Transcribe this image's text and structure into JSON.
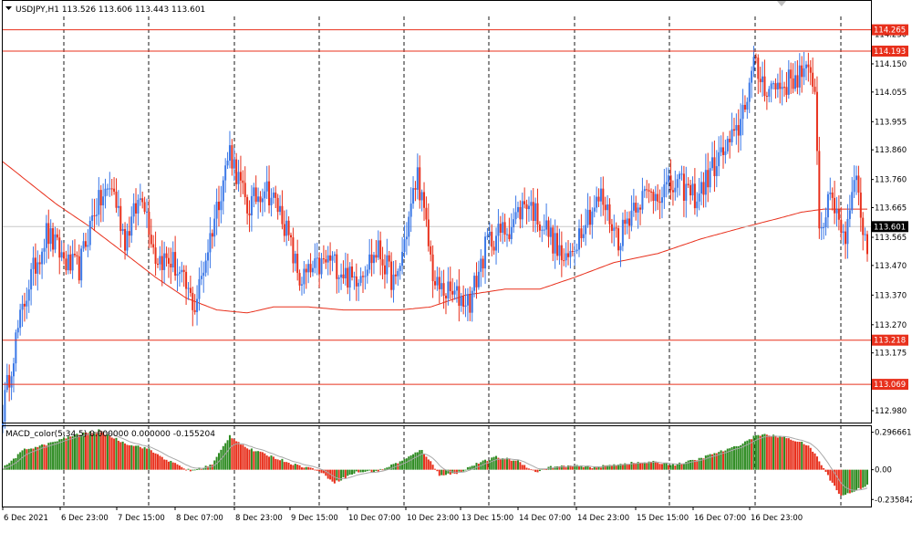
{
  "header": {
    "symbol_line": "USDJPY,H1  113.526  113.606  113.443  113.601",
    "macd_label": "MACD_color(5,34,5) 0.000000  0.000000  -0.155204"
  },
  "colors": {
    "up": "#3b78e7",
    "down": "#e8301c",
    "ma": "#e8301c",
    "level_line": "#e8301c",
    "macd_up": "#2e8b22",
    "macd_down": "#e8301c",
    "signal": "#a8a8a8",
    "grid": "#000000"
  },
  "chart_data": [
    {
      "type": "candlestick",
      "symbol": "USDJPY",
      "timeframe": "H1",
      "ylim": [
        112.94,
        114.31
      ],
      "y_ticks": [
        "114.250",
        "114.150",
        "114.055",
        "113.955",
        "113.860",
        "113.760",
        "113.665",
        "113.565",
        "113.470",
        "113.370",
        "113.270",
        "113.175",
        "112.980"
      ],
      "current_price_label": "113.601",
      "current_price": 113.601,
      "x_labels": [
        "6 Dec 2021",
        "6 Dec 23:00",
        "7 Dec 15:00",
        "8 Dec 07:00",
        "8 Dec 23:00",
        "9 Dec 15:00",
        "10 Dec 07:00",
        "10 Dec 23:00",
        "13 Dec 15:00",
        "14 Dec 07:00",
        "14 Dec 23:00",
        "15 Dec 15:00",
        "16 Dec 07:00",
        "16 Dec 23:00"
      ],
      "levels": [
        {
          "label": "114.265",
          "value": 114.265
        },
        {
          "label": "114.193",
          "value": 114.193
        },
        {
          "label": "113.218",
          "value": 113.218
        },
        {
          "label": "113.069",
          "value": 113.069
        }
      ],
      "anchors": [
        [
          0,
          112.98
        ],
        [
          6,
          113.22
        ],
        [
          12,
          113.41
        ],
        [
          20,
          113.58
        ],
        [
          30,
          113.47
        ],
        [
          35,
          113.46
        ],
        [
          42,
          113.66
        ],
        [
          50,
          113.74
        ],
        [
          56,
          113.56
        ],
        [
          64,
          113.72
        ],
        [
          70,
          113.5
        ],
        [
          78,
          113.48
        ],
        [
          88,
          113.33
        ],
        [
          96,
          113.6
        ],
        [
          104,
          113.86
        ],
        [
          112,
          113.66
        ],
        [
          120,
          113.74
        ],
        [
          128,
          113.64
        ],
        [
          136,
          113.42
        ],
        [
          150,
          113.49
        ],
        [
          160,
          113.42
        ],
        [
          172,
          113.52
        ],
        [
          180,
          113.4
        ],
        [
          190,
          113.78
        ],
        [
          198,
          113.4
        ],
        [
          206,
          113.37
        ],
        [
          214,
          113.35
        ],
        [
          222,
          113.55
        ],
        [
          232,
          113.6
        ],
        [
          240,
          113.69
        ],
        [
          250,
          113.58
        ],
        [
          258,
          113.47
        ],
        [
          266,
          113.62
        ],
        [
          274,
          113.7
        ],
        [
          282,
          113.56
        ],
        [
          290,
          113.69
        ],
        [
          300,
          113.72
        ],
        [
          310,
          113.74
        ],
        [
          318,
          113.7
        ],
        [
          326,
          113.81
        ],
        [
          336,
          113.91
        ],
        [
          344,
          114.14
        ],
        [
          350,
          114.07
        ],
        [
          358,
          114.08
        ],
        [
          366,
          114.12
        ],
        [
          372,
          114.09
        ],
        [
          374,
          113.6
        ],
        [
          380,
          113.7
        ],
        [
          386,
          113.56
        ],
        [
          390,
          113.8
        ],
        [
          394,
          113.6
        ],
        [
          396,
          113.53
        ]
      ],
      "ma_anchors": [
        [
          0,
          113.82
        ],
        [
          12,
          113.75
        ],
        [
          24,
          113.68
        ],
        [
          40,
          113.6
        ],
        [
          56,
          113.51
        ],
        [
          70,
          113.43
        ],
        [
          84,
          113.36
        ],
        [
          98,
          113.32
        ],
        [
          112,
          113.31
        ],
        [
          124,
          113.33
        ],
        [
          140,
          113.33
        ],
        [
          156,
          113.32
        ],
        [
          172,
          113.32
        ],
        [
          182,
          113.32
        ],
        [
          196,
          113.33
        ],
        [
          212,
          113.37
        ],
        [
          230,
          113.39
        ],
        [
          246,
          113.39
        ],
        [
          262,
          113.43
        ],
        [
          280,
          113.48
        ],
        [
          300,
          113.51
        ],
        [
          320,
          113.56
        ],
        [
          340,
          113.6
        ],
        [
          356,
          113.63
        ],
        [
          366,
          113.65
        ],
        [
          376,
          113.66
        ],
        [
          386,
          113.66
        ],
        [
          396,
          113.66
        ]
      ]
    },
    {
      "type": "bar",
      "name": "MACD_color(5,34,5)",
      "ylim": [
        -0.27,
        0.33
      ],
      "y_ticks": [
        "0.296661",
        "0.00",
        "-0.235842"
      ],
      "anchors": [
        [
          0,
          0.01
        ],
        [
          10,
          0.16
        ],
        [
          20,
          0.2
        ],
        [
          32,
          0.27
        ],
        [
          44,
          0.31
        ],
        [
          56,
          0.21
        ],
        [
          66,
          0.17
        ],
        [
          76,
          0.07
        ],
        [
          86,
          -0.01
        ],
        [
          96,
          0.04
        ],
        [
          104,
          0.27
        ],
        [
          112,
          0.17
        ],
        [
          124,
          0.1
        ],
        [
          134,
          0.04
        ],
        [
          144,
          0.0
        ],
        [
          152,
          -0.1
        ],
        [
          162,
          -0.02
        ],
        [
          172,
          -0.01
        ],
        [
          184,
          0.08
        ],
        [
          192,
          0.16
        ],
        [
          200,
          -0.04
        ],
        [
          208,
          -0.03
        ],
        [
          216,
          0.04
        ],
        [
          226,
          0.1
        ],
        [
          236,
          0.07
        ],
        [
          244,
          -0.02
        ],
        [
          250,
          0.02
        ],
        [
          260,
          0.03
        ],
        [
          272,
          0.02
        ],
        [
          284,
          0.05
        ],
        [
          298,
          0.06
        ],
        [
          308,
          0.04
        ],
        [
          318,
          0.08
        ],
        [
          326,
          0.13
        ],
        [
          334,
          0.17
        ],
        [
          340,
          0.22
        ],
        [
          346,
          0.28
        ],
        [
          352,
          0.27
        ],
        [
          360,
          0.25
        ],
        [
          368,
          0.2
        ],
        [
          372,
          0.13
        ],
        [
          378,
          -0.05
        ],
        [
          384,
          -0.21
        ],
        [
          390,
          -0.17
        ],
        [
          396,
          -0.12
        ]
      ]
    }
  ]
}
